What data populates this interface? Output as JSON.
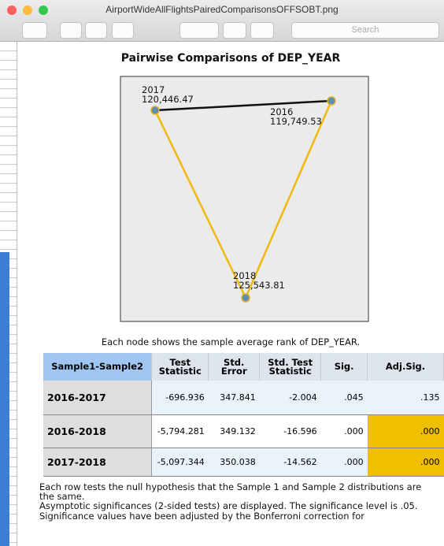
{
  "window": {
    "title": "AirportWideAllFlightsPairedComparisonsOFFSOBT.png",
    "search_placeholder": "Search"
  },
  "diagram": {
    "title": "Pairwise Comparisons of DEP_YEAR",
    "nodes": [
      {
        "label": "2017",
        "rank": "120,446.47"
      },
      {
        "label": "2016",
        "rank": "119,749.53"
      },
      {
        "label": "2018",
        "rank": "125,543.81"
      }
    ],
    "caption": "Each node shows the sample average rank of DEP_YEAR."
  },
  "table": {
    "headers": [
      "Sample1-Sample2",
      "Test Statistic",
      "Std. Error",
      "Std. Test Statistic",
      "Sig.",
      "Adj.Sig."
    ],
    "rows": [
      [
        "2016-2017",
        "-696.936",
        "347.841",
        "-2.004",
        ".045",
        ".135"
      ],
      [
        "2016-2018",
        "-5,794.281",
        "349.132",
        "-16.596",
        ".000",
        ".000"
      ],
      [
        "2017-2018",
        "-5,097.344",
        "350.038",
        "-14.562",
        ".000",
        ".000"
      ]
    ]
  },
  "footnotes": [
    "Each row tests the null hypothesis that the Sample 1 and Sample 2 distributions are the same.",
    "Asymptotic significances (2-sided tests) are displayed. The significance level is .05.",
    "Significance values have been adjusted by the Bonferroni correction for"
  ]
}
